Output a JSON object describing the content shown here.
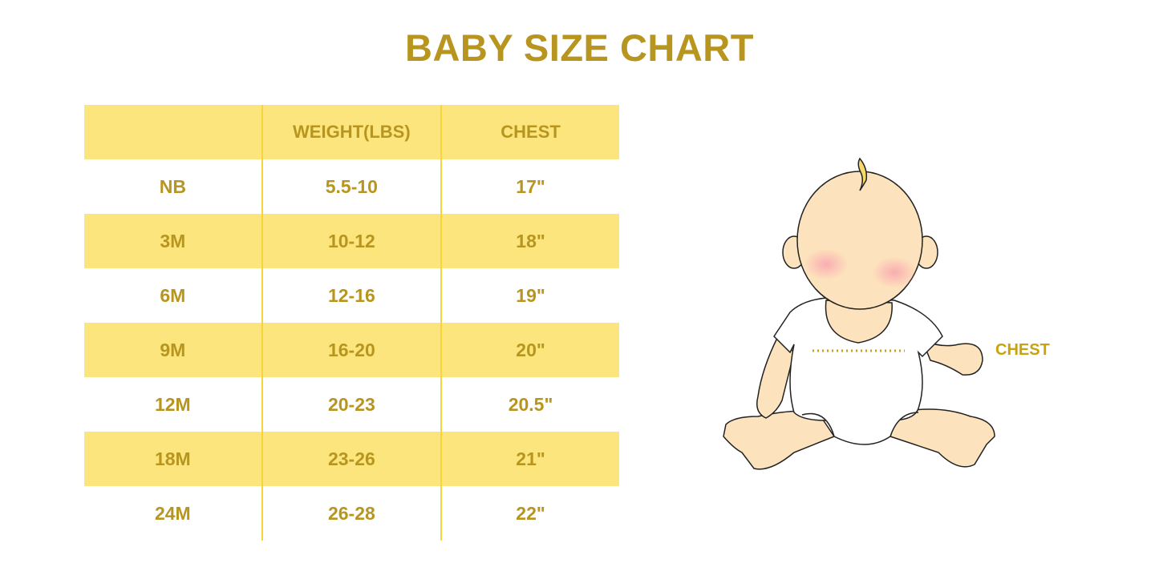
{
  "title": "BABY SIZE CHART",
  "table": {
    "headers": [
      "",
      "WEIGHT(LBS)",
      "CHEST"
    ],
    "rows": [
      [
        "NB",
        "5.5-10",
        "17\""
      ],
      [
        "3M",
        "10-12",
        "18\""
      ],
      [
        "6M",
        "12-16",
        "19\""
      ],
      [
        "9M",
        "16-20",
        "20\""
      ],
      [
        "12M",
        "20-23",
        "20.5\""
      ],
      [
        "18M",
        "23-26",
        "21\""
      ],
      [
        "24M",
        "26-28",
        "22\""
      ]
    ]
  },
  "illustration": {
    "chest_label": "CHEST"
  },
  "colors": {
    "text": "#b8951f",
    "row_highlight": "#fbe57c",
    "divider": "#f7d43d",
    "skin": "#fde3bd"
  }
}
